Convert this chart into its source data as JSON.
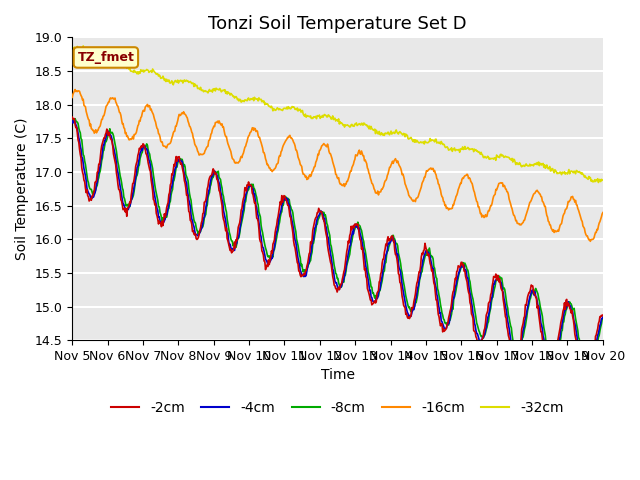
{
  "title": "Tonzi Soil Temperature Set D",
  "xlabel": "Time",
  "ylabel": "Soil Temperature (C)",
  "ylim": [
    14.5,
    19.0
  ],
  "xlim": [
    0,
    15
  ],
  "yticks": [
    14.5,
    15.0,
    15.5,
    16.0,
    16.5,
    17.0,
    17.5,
    18.0,
    18.5,
    19.0
  ],
  "xtick_labels": [
    "Nov 5",
    "Nov 6",
    "Nov 7",
    "Nov 8",
    "Nov 9",
    "Nov 10",
    "Nov 11",
    "Nov 12",
    "Nov 13",
    "Nov 14",
    "Nov 15",
    "Nov 16",
    "Nov 17",
    "Nov 18",
    "Nov 19",
    "Nov 20"
  ],
  "legend_label": "TZ_fmet",
  "series": [
    {
      "label": "-2cm",
      "color": "#cc0000"
    },
    {
      "label": "-4cm",
      "color": "#0000cc"
    },
    {
      "label": "-8cm",
      "color": "#00aa00"
    },
    {
      "label": "-16cm",
      "color": "#ff8800"
    },
    {
      "label": "-32cm",
      "color": "#dddd00"
    }
  ],
  "background_color": "#ffffff",
  "plot_bg_color": "#e8e8e8",
  "grid_color": "#ffffff",
  "title_fontsize": 13,
  "axis_fontsize": 10,
  "tick_fontsize": 9,
  "legend_fontsize": 10,
  "figsize": [
    6.4,
    4.8
  ],
  "dpi": 100
}
